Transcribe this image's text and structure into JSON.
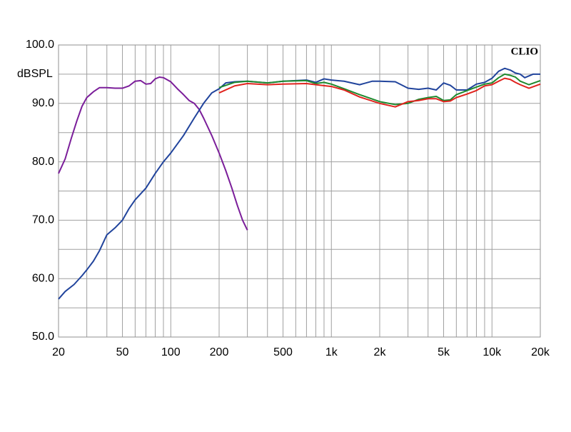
{
  "chart_data": {
    "type": "line",
    "y_label": "dBSPL",
    "annotation": "CLIO",
    "x_scale": "log",
    "grid": true,
    "xlim": [
      20,
      20000
    ],
    "ylim": [
      50,
      100
    ],
    "xticks": [
      20,
      50,
      100,
      200,
      500,
      {
        "value": 1000,
        "label": "1k"
      },
      {
        "value": 2000,
        "label": "2k"
      },
      {
        "value": 5000,
        "label": "5k"
      },
      {
        "value": 10000,
        "label": "10k"
      },
      {
        "value": 20000,
        "label": "20k"
      }
    ],
    "x_minor_ticks": [
      30,
      40,
      60,
      70,
      80,
      90,
      300,
      400,
      600,
      700,
      800,
      900,
      3000,
      4000,
      6000,
      7000,
      8000,
      9000
    ],
    "yticks": [
      {
        "value": 50,
        "label": "50.0"
      },
      {
        "value": 60,
        "label": "60.0"
      },
      {
        "value": 70,
        "label": "70.0"
      },
      {
        "value": 80,
        "label": "80.0"
      },
      {
        "value": 90,
        "label": "90.0"
      },
      {
        "value": 100,
        "label": "100.0"
      }
    ],
    "y_minor_ticks": [
      55,
      65,
      75,
      85,
      95
    ],
    "series": [
      {
        "color": "#7b1e9a",
        "x": [
          20,
          22,
          24,
          26,
          28,
          30,
          33,
          36,
          40,
          45,
          50,
          55,
          60,
          65,
          70,
          75,
          80,
          85,
          90,
          100,
          110,
          120,
          130,
          140,
          150,
          160,
          180,
          200,
          220,
          240,
          260,
          280,
          300
        ],
        "values": [
          78,
          80.5,
          84,
          87,
          89.5,
          91,
          92,
          92.7,
          92.7,
          92.6,
          92.6,
          93,
          93.8,
          93.9,
          93.3,
          93.4,
          94.2,
          94.5,
          94.4,
          93.7,
          92.5,
          91.5,
          90.5,
          90,
          89,
          87.5,
          84.5,
          81.5,
          78.5,
          75.5,
          72.5,
          70,
          68.3
        ]
      },
      {
        "color": "#21449c",
        "x": [
          20,
          22,
          25,
          28,
          30,
          33,
          36,
          40,
          45,
          50,
          55,
          60,
          70,
          80,
          90,
          100,
          120,
          140,
          160,
          180,
          200,
          220,
          250,
          300,
          400,
          500,
          700,
          800,
          900,
          1000,
          1200,
          1500,
          1800,
          2000,
          2500,
          3000,
          3500,
          4000,
          4500,
          5000,
          5500,
          6000,
          7000,
          8000,
          9000,
          10000,
          11000,
          12000,
          13000,
          14000,
          15000,
          16000,
          18000,
          20000
        ],
        "values": [
          56.5,
          57.8,
          59,
          60.5,
          61.5,
          63,
          64.8,
          67.5,
          68.7,
          70,
          72,
          73.5,
          75.5,
          78,
          80,
          81.5,
          84.5,
          87.5,
          90,
          91.8,
          92.5,
          93.5,
          93.7,
          93.8,
          93.5,
          93.8,
          94,
          93.6,
          94.2,
          94,
          93.8,
          93.2,
          93.8,
          93.8,
          93.7,
          92.6,
          92.4,
          92.6,
          92.3,
          93.5,
          93.1,
          92.3,
          92.3,
          93.3,
          93.6,
          94.3,
          95.5,
          96,
          95.7,
          95.2,
          95,
          94.4,
          95,
          95
        ]
      },
      {
        "color": "#1e8a2e",
        "x": [
          200,
          250,
          300,
          400,
          500,
          700,
          800,
          900,
          1000,
          1200,
          1500,
          2000,
          2500,
          3000,
          3500,
          4000,
          4500,
          5000,
          5500,
          6000,
          7000,
          8000,
          9000,
          10000,
          11000,
          12000,
          13000,
          14000,
          15000,
          17000,
          20000
        ],
        "values": [
          92.7,
          93.6,
          93.8,
          93.5,
          93.8,
          93.9,
          93.4,
          93.6,
          93.3,
          92.5,
          91.5,
          90.3,
          89.8,
          90,
          90.7,
          91,
          91.2,
          90.5,
          90.6,
          91.5,
          92.2,
          92.8,
          93.3,
          93.5,
          94.4,
          95,
          94.8,
          94.5,
          93.8,
          93.2,
          93.9
        ]
      },
      {
        "color": "#e0231e",
        "x": [
          200,
          250,
          300,
          400,
          500,
          700,
          800,
          1000,
          1200,
          1500,
          2000,
          2500,
          3000,
          3500,
          4000,
          4500,
          5000,
          5500,
          6000,
          7000,
          8000,
          9000,
          10000,
          11000,
          12000,
          13000,
          14000,
          15000,
          17000,
          20000
        ],
        "values": [
          91.8,
          93,
          93.4,
          93.2,
          93.3,
          93.4,
          93.2,
          92.9,
          92.3,
          91.1,
          90,
          89.4,
          90.3,
          90.5,
          90.8,
          90.8,
          90.3,
          90.4,
          91,
          91.6,
          92.2,
          93,
          93.2,
          93.8,
          94.3,
          94.1,
          93.6,
          93.2,
          92.6,
          93.3
        ]
      }
    ]
  }
}
